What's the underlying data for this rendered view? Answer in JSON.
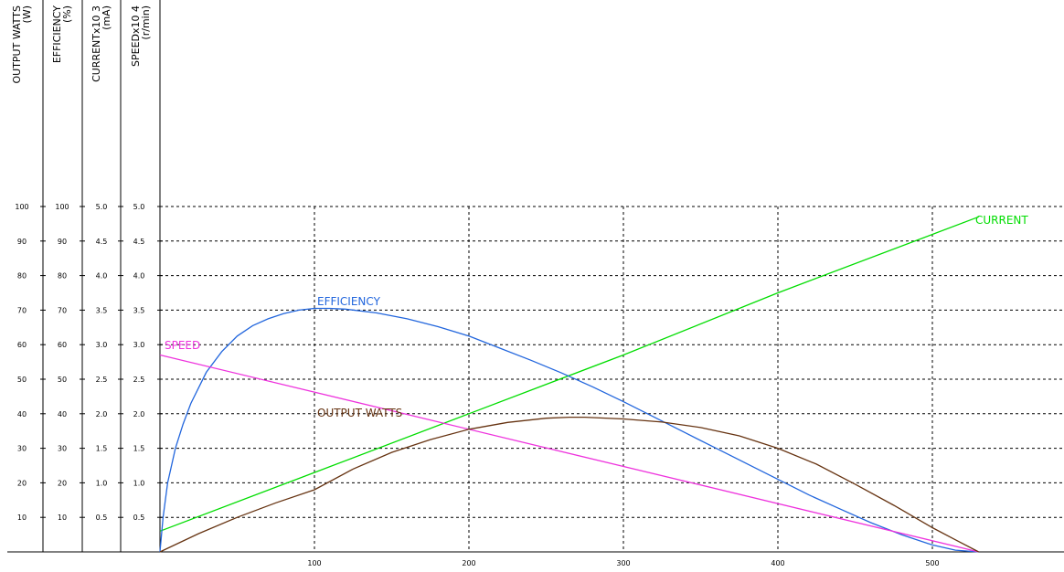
{
  "chart_data": {
    "type": "line",
    "title": "",
    "x": {
      "label": "",
      "ticks": [
        100,
        200,
        300,
        400,
        500
      ],
      "range": [
        0,
        580
      ]
    },
    "y_axes": [
      {
        "id": "output",
        "title_lines": [
          "OUTPUT WATTS",
          "(W)"
        ],
        "ticks": [
          "100",
          "90",
          "80",
          "70",
          "60",
          "50",
          "40",
          "30",
          "20",
          "10"
        ],
        "range": [
          0,
          100
        ]
      },
      {
        "id": "efficiency",
        "title_lines": [
          "EFFICIENCY",
          "(%)"
        ],
        "ticks": [
          "100",
          "90",
          "80",
          "70",
          "60",
          "50",
          "40",
          "30",
          "20",
          "10"
        ],
        "range": [
          0,
          100
        ]
      },
      {
        "id": "current",
        "title_lines": [
          "CURRENTx10 3",
          "(mA)"
        ],
        "ticks": [
          "5.0",
          "4.5",
          "4.0",
          "3.5",
          "3.0",
          "2.5",
          "2.0",
          "1.5",
          "1.0",
          "0.5"
        ],
        "range": [
          0,
          5.0
        ]
      },
      {
        "id": "speed",
        "title_lines": [
          "SPEEDx10 4",
          "(r/min)"
        ],
        "ticks": [
          "5.0",
          "4.5",
          "4.0",
          "3.5",
          "3.0",
          "2.5",
          "2.0",
          "1.5",
          "1.0",
          "0.5"
        ],
        "range": [
          0,
          5.0
        ]
      }
    ],
    "grid": true,
    "series": [
      {
        "name": "CURRENT",
        "axis": "current",
        "color": "#00dd00",
        "x": [
          0,
          100,
          200,
          300,
          400,
          530
        ],
        "y": [
          0.3,
          1.15,
          2.0,
          2.85,
          3.75,
          4.85
        ]
      },
      {
        "name": "EFFICIENCY",
        "axis": "efficiency",
        "color": "#2266dd",
        "x": [
          0,
          2,
          5,
          10,
          15,
          20,
          30,
          40,
          50,
          60,
          70,
          80,
          90,
          100,
          110,
          120,
          140,
          160,
          180,
          200,
          220,
          240,
          260,
          280,
          300,
          320,
          340,
          360,
          380,
          400,
          420,
          440,
          460,
          480,
          500,
          515,
          530
        ],
        "y": [
          0,
          10,
          20,
          30,
          37,
          43,
          52,
          58,
          62.5,
          65.5,
          67.5,
          69,
          70,
          70.5,
          70.5,
          70.3,
          69.2,
          67.5,
          65.2,
          62.5,
          59,
          55.5,
          51.8,
          47.8,
          43.5,
          39,
          34.5,
          30,
          25.5,
          21,
          16.5,
          12.5,
          8.5,
          5,
          2,
          0.5,
          0
        ]
      },
      {
        "name": "SPEED",
        "axis": "speed",
        "color": "#ee33dd",
        "x": [
          0,
          530
        ],
        "y": [
          2.85,
          0
        ]
      },
      {
        "name": "OUTPUT WATTS",
        "axis": "output",
        "color": "#663311",
        "x": [
          0,
          25,
          50,
          75,
          100,
          125,
          150,
          175,
          200,
          225,
          250,
          265,
          275,
          300,
          325,
          350,
          375,
          400,
          425,
          450,
          475,
          500,
          515,
          530
        ],
        "y": [
          0,
          5.3,
          10,
          14.2,
          18,
          24,
          28.8,
          32.5,
          35.5,
          37.5,
          38.7,
          39,
          39,
          38.5,
          37.6,
          36,
          33.6,
          30,
          25.4,
          19.6,
          13.5,
          7,
          3.5,
          0
        ]
      }
    ],
    "labels": [
      {
        "text": "CURRENT",
        "series": "CURRENT",
        "color": "#00dd00"
      },
      {
        "text": "EFFICIENCY",
        "series": "EFFICIENCY",
        "color": "#2266dd"
      },
      {
        "text": "SPEED",
        "series": "SPEED",
        "color": "#ee33dd"
      },
      {
        "text": "OUTPUT WATTS",
        "series": "OUTPUT WATTS",
        "color": "#663311"
      }
    ]
  }
}
